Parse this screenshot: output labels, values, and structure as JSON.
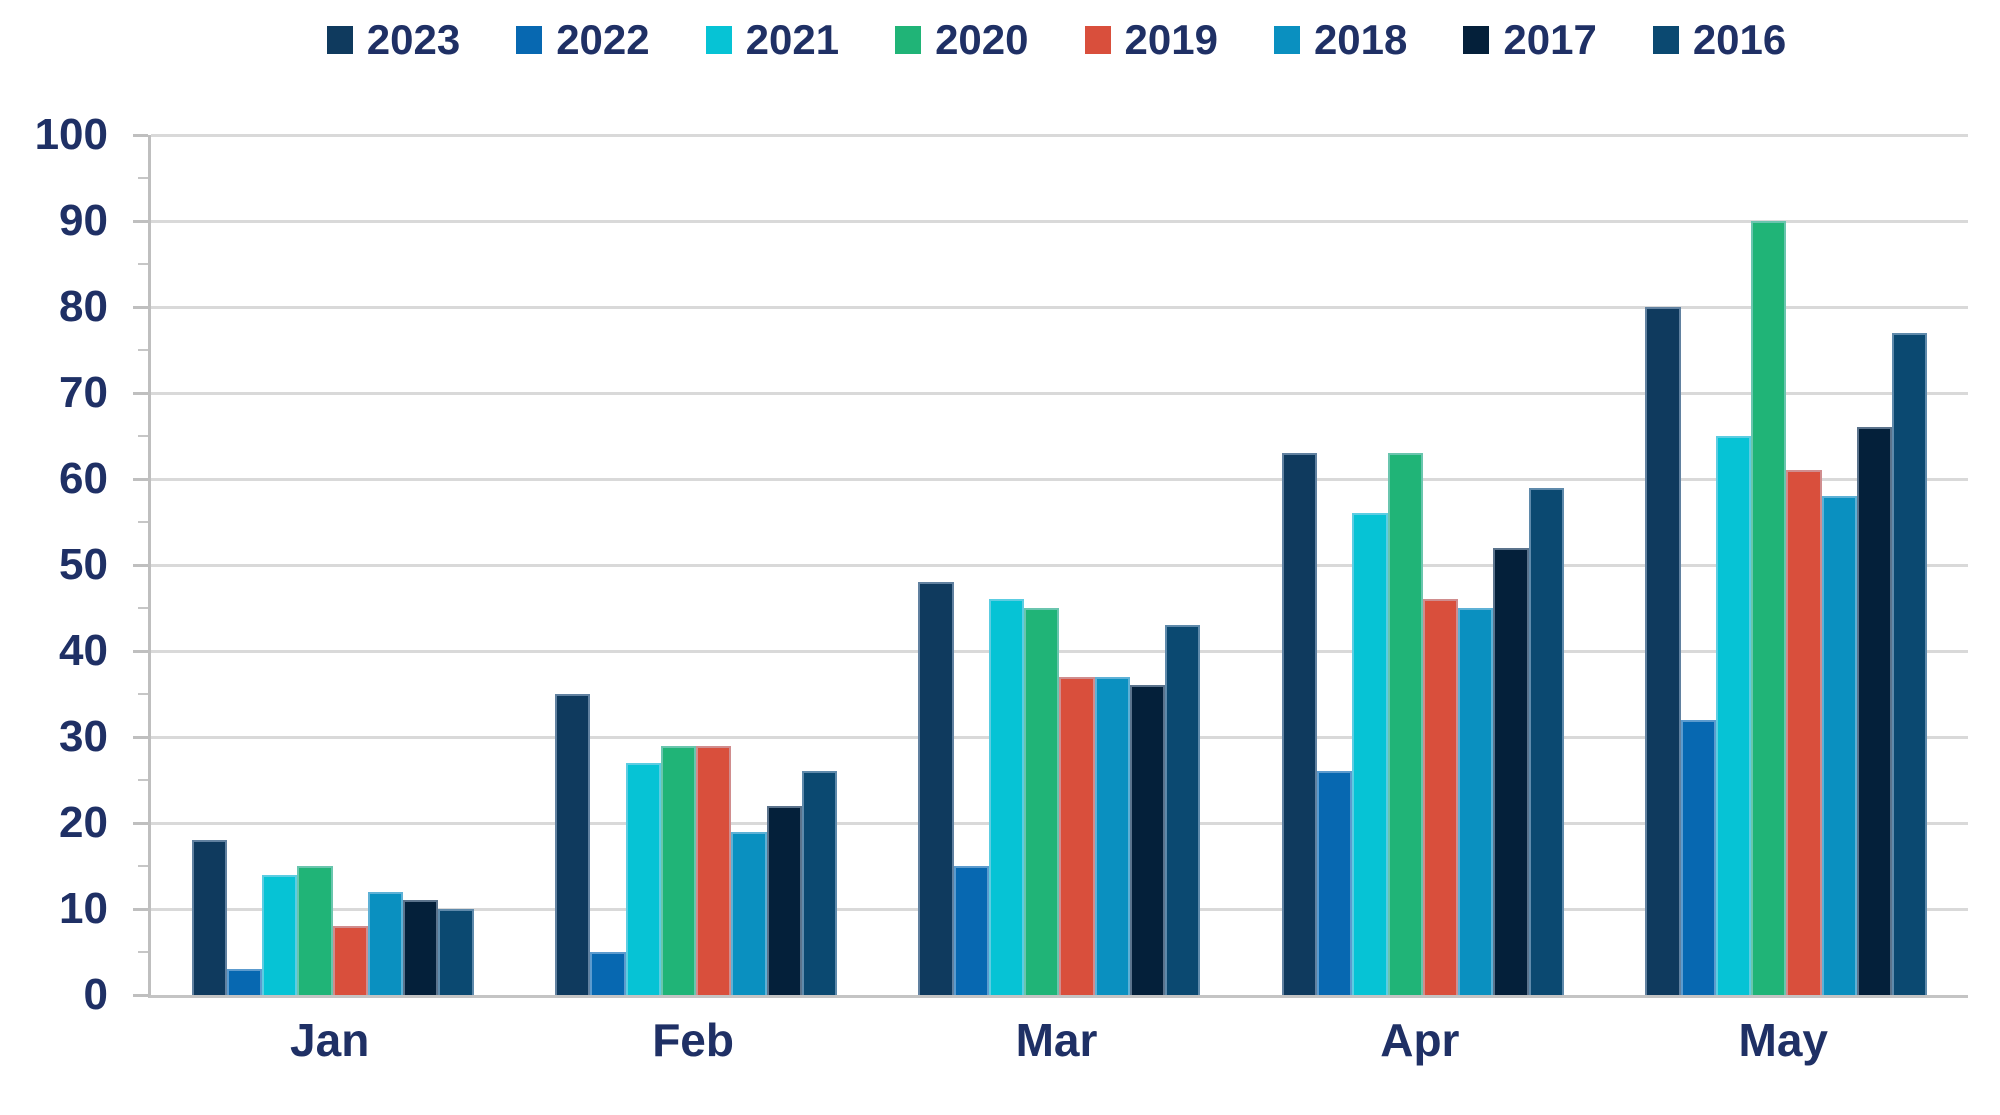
{
  "page": {
    "background": "#FFFFFF",
    "text_color": "#1F3065"
  },
  "chart_data": {
    "type": "bar",
    "title": "",
    "xlabel": "",
    "ylabel": "",
    "categories": [
      "Jan",
      "Feb",
      "Mar",
      "Apr",
      "May"
    ],
    "series": [
      {
        "name": "2023",
        "color": "#0F3A5E",
        "values": [
          18,
          35,
          48,
          63,
          80
        ]
      },
      {
        "name": "2022",
        "color": "#0768B1",
        "values": [
          3,
          5,
          15,
          26,
          32
        ]
      },
      {
        "name": "2021",
        "color": "#06C3D5",
        "values": [
          14,
          27,
          46,
          56,
          65
        ]
      },
      {
        "name": "2020",
        "color": "#20B477",
        "values": [
          15,
          29,
          45,
          63,
          90
        ]
      },
      {
        "name": "2019",
        "color": "#D94F3C",
        "values": [
          8,
          29,
          37,
          46,
          61
        ]
      },
      {
        "name": "2018",
        "color": "#0A90C0",
        "values": [
          12,
          19,
          37,
          45,
          58
        ]
      },
      {
        "name": "2017",
        "color": "#04203A",
        "values": [
          11,
          22,
          36,
          52,
          66
        ]
      },
      {
        "name": "2016",
        "color": "#0B4971",
        "values": [
          10,
          26,
          43,
          59,
          77
        ]
      }
    ],
    "ylim": [
      0,
      100
    ],
    "ytick_step": 10,
    "yticks": [
      "0",
      "10",
      "20",
      "30",
      "40",
      "50",
      "60",
      "70",
      "80",
      "90",
      "100"
    ],
    "minor_tick_step": 5,
    "grid": true,
    "gridline_color": "#D9D9D9",
    "axis_line_color": "#BFBFBF",
    "legend_position": "top"
  }
}
